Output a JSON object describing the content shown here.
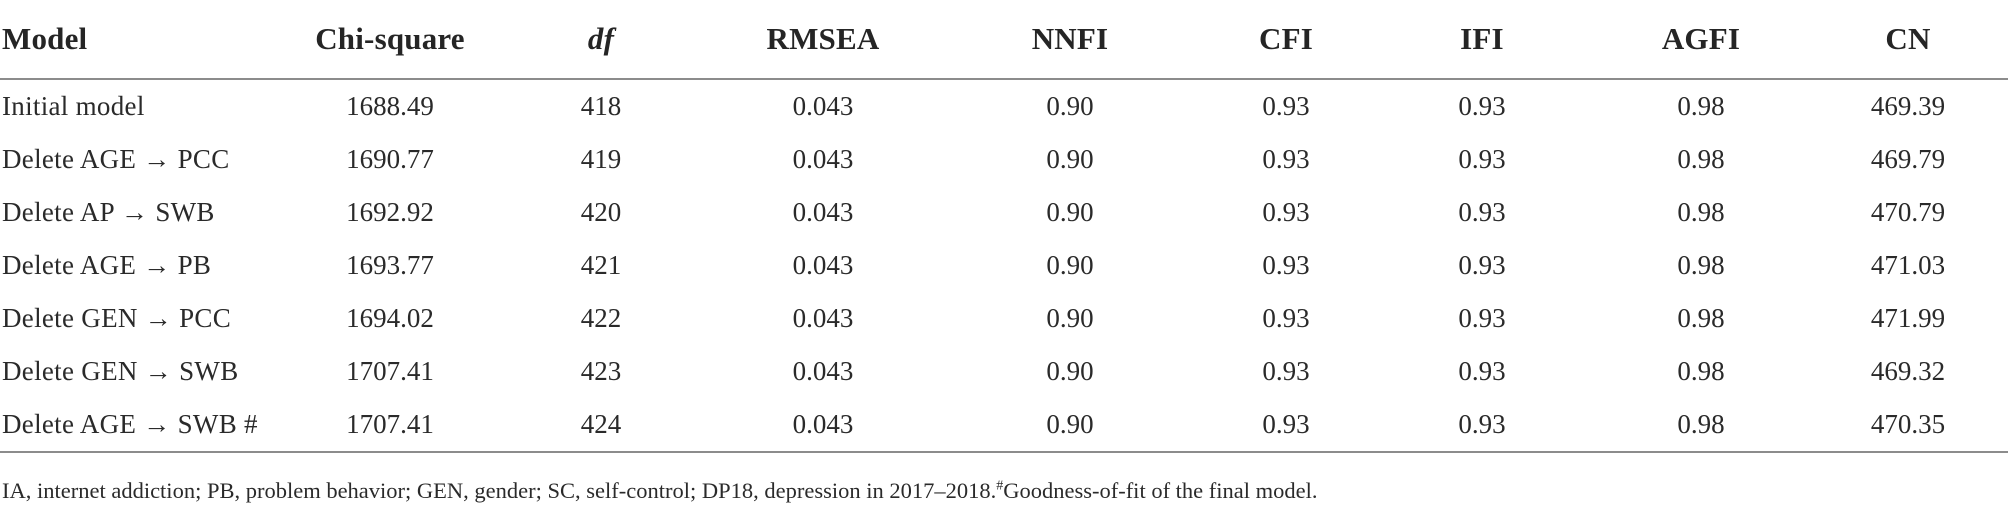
{
  "colors": {
    "background": "#ffffff",
    "text": "#2a2a2a",
    "rule": "#8c8c8c"
  },
  "table": {
    "columns": [
      {
        "key": "model",
        "label": "Model"
      },
      {
        "key": "chi_square",
        "label": "Chi-square"
      },
      {
        "key": "df",
        "label": "df"
      },
      {
        "key": "rmsea",
        "label": "RMSEA"
      },
      {
        "key": "nnfi",
        "label": "NNFI"
      },
      {
        "key": "cfi",
        "label": "CFI"
      },
      {
        "key": "ifi",
        "label": "IFI"
      },
      {
        "key": "agfi",
        "label": "AGFI"
      },
      {
        "key": "cn",
        "label": "CN"
      }
    ],
    "rows": [
      {
        "model": "Initial model",
        "chi_square": "1688.49",
        "df": "418",
        "rmsea": "0.043",
        "nnfi": "0.90",
        "cfi": "0.93",
        "ifi": "0.93",
        "agfi": "0.98",
        "cn": "469.39"
      },
      {
        "model": "Delete AGE → PCC",
        "chi_square": "1690.77",
        "df": "419",
        "rmsea": "0.043",
        "nnfi": "0.90",
        "cfi": "0.93",
        "ifi": "0.93",
        "agfi": "0.98",
        "cn": "469.79"
      },
      {
        "model": "Delete AP → SWB",
        "chi_square": "1692.92",
        "df": "420",
        "rmsea": "0.043",
        "nnfi": "0.90",
        "cfi": "0.93",
        "ifi": "0.93",
        "agfi": "0.98",
        "cn": "470.79"
      },
      {
        "model": "Delete AGE → PB",
        "chi_square": "1693.77",
        "df": "421",
        "rmsea": "0.043",
        "nnfi": "0.90",
        "cfi": "0.93",
        "ifi": "0.93",
        "agfi": "0.98",
        "cn": "471.03"
      },
      {
        "model": "Delete GEN → PCC",
        "chi_square": "1694.02",
        "df": "422",
        "rmsea": "0.043",
        "nnfi": "0.90",
        "cfi": "0.93",
        "ifi": "0.93",
        "agfi": "0.98",
        "cn": "471.99"
      },
      {
        "model": "Delete GEN → SWB",
        "chi_square": "1707.41",
        "df": "423",
        "rmsea": "0.043",
        "nnfi": "0.90",
        "cfi": "0.93",
        "ifi": "0.93",
        "agfi": "0.98",
        "cn": "469.32"
      },
      {
        "model": "Delete AGE → SWB #",
        "chi_square": "1707.41",
        "df": "424",
        "rmsea": "0.043",
        "nnfi": "0.90",
        "cfi": "0.93",
        "ifi": "0.93",
        "agfi": "0.98",
        "cn": "470.35"
      }
    ],
    "footnote": {
      "abbreviations": "IA, internet addiction; PB, problem behavior; GEN, gender; SC, self-control; DP18, depression in 2017–2018.",
      "marker": "#",
      "note": "Goodness-of-fit of the final model."
    }
  }
}
